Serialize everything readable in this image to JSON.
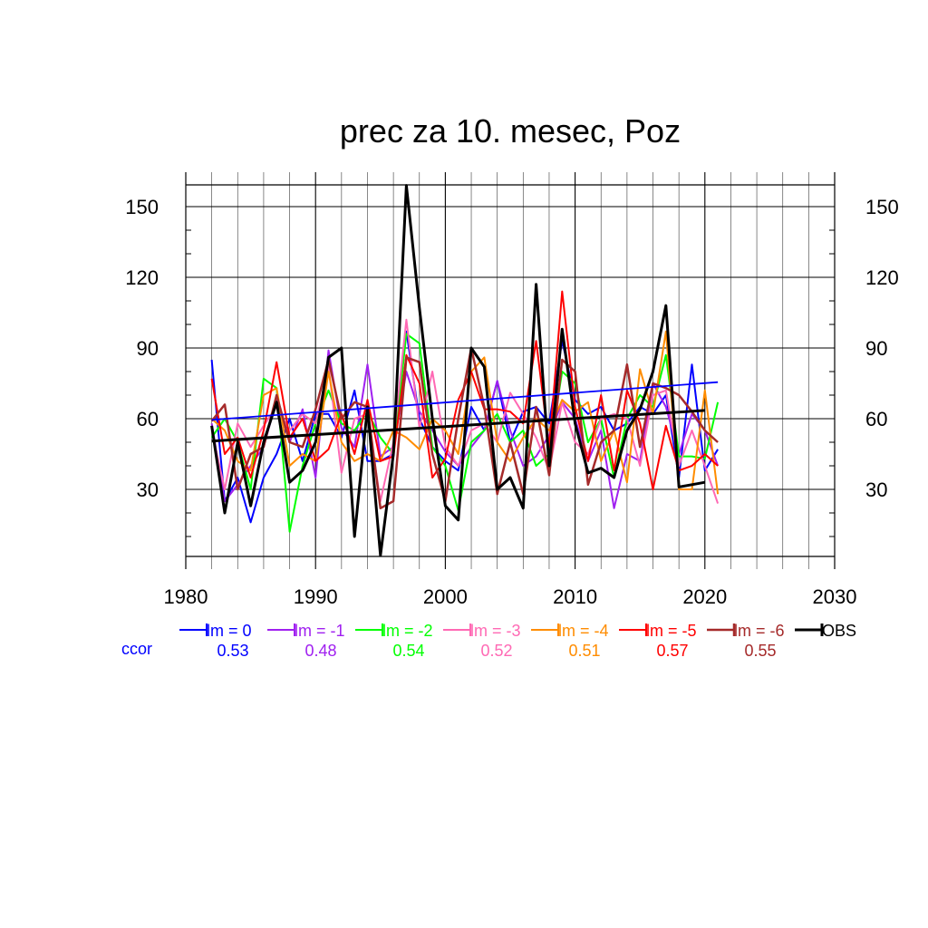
{
  "chart_data": {
    "type": "line",
    "title": "prec za 10. mesec, Poz",
    "xlabel": "",
    "ylabel": "",
    "xlim": [
      1980,
      2030
    ],
    "ylim": [
      0,
      160
    ],
    "x_ticks": [
      1980,
      1990,
      2000,
      2010,
      2020,
      2030
    ],
    "y_ticks": [
      30,
      60,
      90,
      120,
      150
    ],
    "grid": true,
    "legend_placement": "bottom",
    "ccor_label": "ccor",
    "years": [
      1982,
      1983,
      1984,
      1985,
      1986,
      1987,
      1988,
      1989,
      1990,
      1991,
      1992,
      1993,
      1994,
      1995,
      1996,
      1997,
      1998,
      1999,
      2000,
      2001,
      2002,
      2003,
      2004,
      2005,
      2006,
      2007,
      2008,
      2009,
      2010,
      2011,
      2012,
      2013,
      2014,
      2015,
      2016,
      2017,
      2018,
      2019,
      2020,
      2021
    ],
    "series": [
      {
        "name": "lm = 0",
        "ccor": "0.53",
        "color": "#0000ff",
        "width": 2,
        "values": [
          85,
          25,
          35,
          16,
          35,
          45,
          60,
          42,
          62,
          62,
          52,
          72,
          42,
          42,
          45,
          97,
          60,
          48,
          42,
          38,
          65,
          55,
          76,
          50,
          63,
          65,
          58,
          93,
          68,
          62,
          65,
          55,
          58,
          65,
          62,
          70,
          35,
          83,
          38,
          47
        ],
        "trend": [
          59.5,
          75.5
        ]
      },
      {
        "name": "lm = -1",
        "ccor": "0.48",
        "color": "#a020f0",
        "width": 2,
        "values": [
          58,
          25,
          32,
          40,
          48,
          68,
          50,
          64,
          35,
          89,
          56,
          48,
          83,
          44,
          48,
          80,
          63,
          55,
          46,
          40,
          48,
          55,
          76,
          55,
          40,
          44,
          53,
          67,
          60,
          42,
          55,
          22,
          45,
          42,
          75,
          65,
          45,
          62,
          55,
          40
        ]
      },
      {
        "name": "lm = -2",
        "ccor": "0.54",
        "color": "#00ff00",
        "width": 2,
        "values": [
          52,
          60,
          50,
          30,
          77,
          73,
          12,
          40,
          58,
          72,
          58,
          55,
          63,
          52,
          45,
          96,
          92,
          48,
          40,
          21,
          50,
          55,
          62,
          50,
          55,
          40,
          45,
          80,
          75,
          50,
          60,
          35,
          60,
          70,
          65,
          87,
          44,
          44,
          43,
          67
        ]
      },
      {
        "name": "lm = -3",
        "ccor": "0.52",
        "color": "#ff69b4",
        "width": 2,
        "values": [
          55,
          30,
          58,
          48,
          57,
          65,
          55,
          62,
          58,
          82,
          37,
          60,
          62,
          25,
          50,
          102,
          56,
          80,
          48,
          40,
          55,
          58,
          50,
          71,
          62,
          52,
          38,
          67,
          50,
          45,
          60,
          62,
          60,
          40,
          70,
          72,
          40,
          55,
          40,
          24
        ]
      },
      {
        "name": "lm = -4",
        "ccor": "0.51",
        "color": "#ff8c00",
        "width": 2,
        "values": [
          60,
          55,
          42,
          38,
          70,
          73,
          40,
          45,
          42,
          80,
          50,
          42,
          45,
          42,
          55,
          52,
          47,
          60,
          55,
          45,
          80,
          86,
          50,
          42,
          52,
          60,
          55,
          68,
          63,
          67,
          42,
          55,
          33,
          81,
          62,
          97,
          30,
          30,
          72,
          28
        ]
      },
      {
        "name": "lm = -5",
        "ccor": "0.57",
        "color": "#ff0000",
        "width": 2,
        "values": [
          77,
          45,
          52,
          35,
          55,
          84,
          52,
          60,
          42,
          47,
          62,
          45,
          68,
          42,
          44,
          87,
          75,
          35,
          43,
          68,
          80,
          64,
          64,
          63,
          58,
          93,
          48,
          114,
          65,
          42,
          70,
          38,
          72,
          58,
          30,
          57,
          38,
          40,
          45,
          40
        ]
      },
      {
        "name": "lm = -6",
        "ccor": "0.55",
        "color": "#a52a2a",
        "width": 2.5,
        "values": [
          59,
          66,
          30,
          45,
          48,
          70,
          50,
          48,
          64,
          85,
          60,
          67,
          65,
          22,
          25,
          86,
          84,
          45,
          25,
          60,
          90,
          65,
          28,
          50,
          28,
          65,
          36,
          85,
          80,
          32,
          50,
          55,
          83,
          48,
          75,
          73,
          70,
          63,
          55,
          50
        ]
      },
      {
        "name": "OBS",
        "ccor": "",
        "color": "#000000",
        "width": 3,
        "values": [
          57,
          20,
          50,
          23,
          50,
          67,
          33,
          38,
          50,
          86,
          90,
          10,
          65,
          2,
          45,
          159,
          107,
          60,
          23,
          17,
          90,
          82,
          30,
          35,
          22,
          117,
          40,
          98,
          58,
          37,
          39,
          35,
          55,
          64,
          80,
          108,
          31,
          32,
          33,
          null
        ],
        "trend": [
          50.5,
          63.5
        ]
      }
    ]
  }
}
